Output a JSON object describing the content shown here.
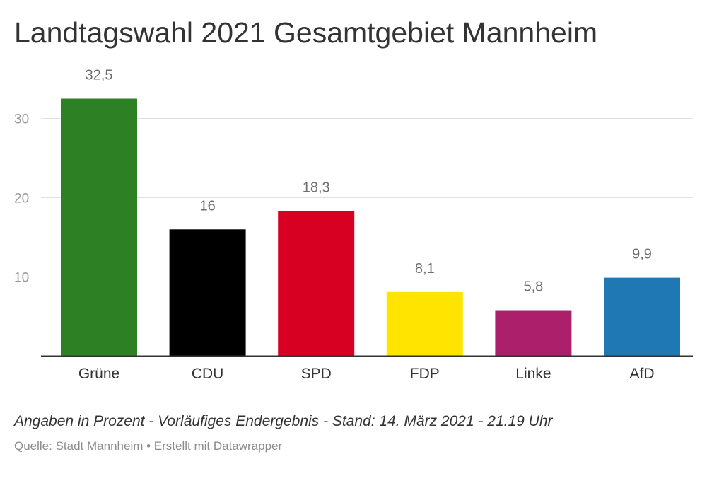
{
  "header": {
    "title": "Landtagswahl 2021 Gesamtgebiet Mannheim"
  },
  "footer": {
    "note": "Angaben in Prozent - Vorläufiges Endergebnis - Stand: 14. März 2021 - 21.19 Uhr",
    "source": "Quelle: Stadt Mannheim • Erstellt mit Datawrapper"
  },
  "chart_data": {
    "type": "bar",
    "title": "Landtagswahl 2021 Gesamtgebiet Mannheim",
    "xlabel": "",
    "ylabel": "",
    "categories": [
      "Grüne",
      "CDU",
      "SPD",
      "FDP",
      "Linke",
      "AfD"
    ],
    "values": [
      32.5,
      16,
      18.3,
      8.1,
      5.8,
      9.9
    ],
    "value_labels": [
      "32,5",
      "16",
      "18,3",
      "8,1",
      "5,8",
      "9,9"
    ],
    "colors": [
      "#2e8025",
      "#000000",
      "#d70023",
      "#ffe400",
      "#ab1f6b",
      "#1f77b4"
    ],
    "ylim": [
      0,
      30
    ],
    "yticks": [
      10,
      20,
      30
    ],
    "ytick_labels": [
      "10",
      "20",
      "30"
    ],
    "grid": true,
    "legend": "none"
  }
}
